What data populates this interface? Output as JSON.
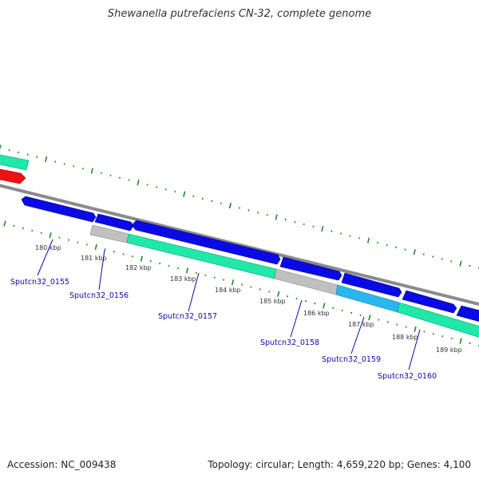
{
  "title": "Shewanella putrefaciens CN-32, complete genome",
  "footer": {
    "accession": "Accession: NC_009438",
    "summary": "Topology: circular; Length: 4,659,220 bp; Genes: 4,100"
  },
  "colors": {
    "backbone": "#8a8a8a",
    "tick": "#1f8a1f",
    "forward_cds": "#0a0ae6",
    "reverse_cds": "#1fe8a8",
    "pseudo": "#c0c0c0",
    "rna": "#28b8ef",
    "other": "#ee1111",
    "label": "#0c0ca6"
  },
  "scale_labels": [
    "180 kbp",
    "181 kbp",
    "182 kbp",
    "183 kbp",
    "184 kbp",
    "185 kbp",
    "186 kbp",
    "187 kbp",
    "188 kbp",
    "189 kbp"
  ],
  "genes": [
    {
      "name": "Sputcn32_0155"
    },
    {
      "name": "Sputcn32_0156"
    },
    {
      "name": "Sputcn32_0157"
    },
    {
      "name": "Sputcn32_0158"
    },
    {
      "name": "Sputcn32_0159"
    },
    {
      "name": "Sputcn32_0160"
    }
  ]
}
